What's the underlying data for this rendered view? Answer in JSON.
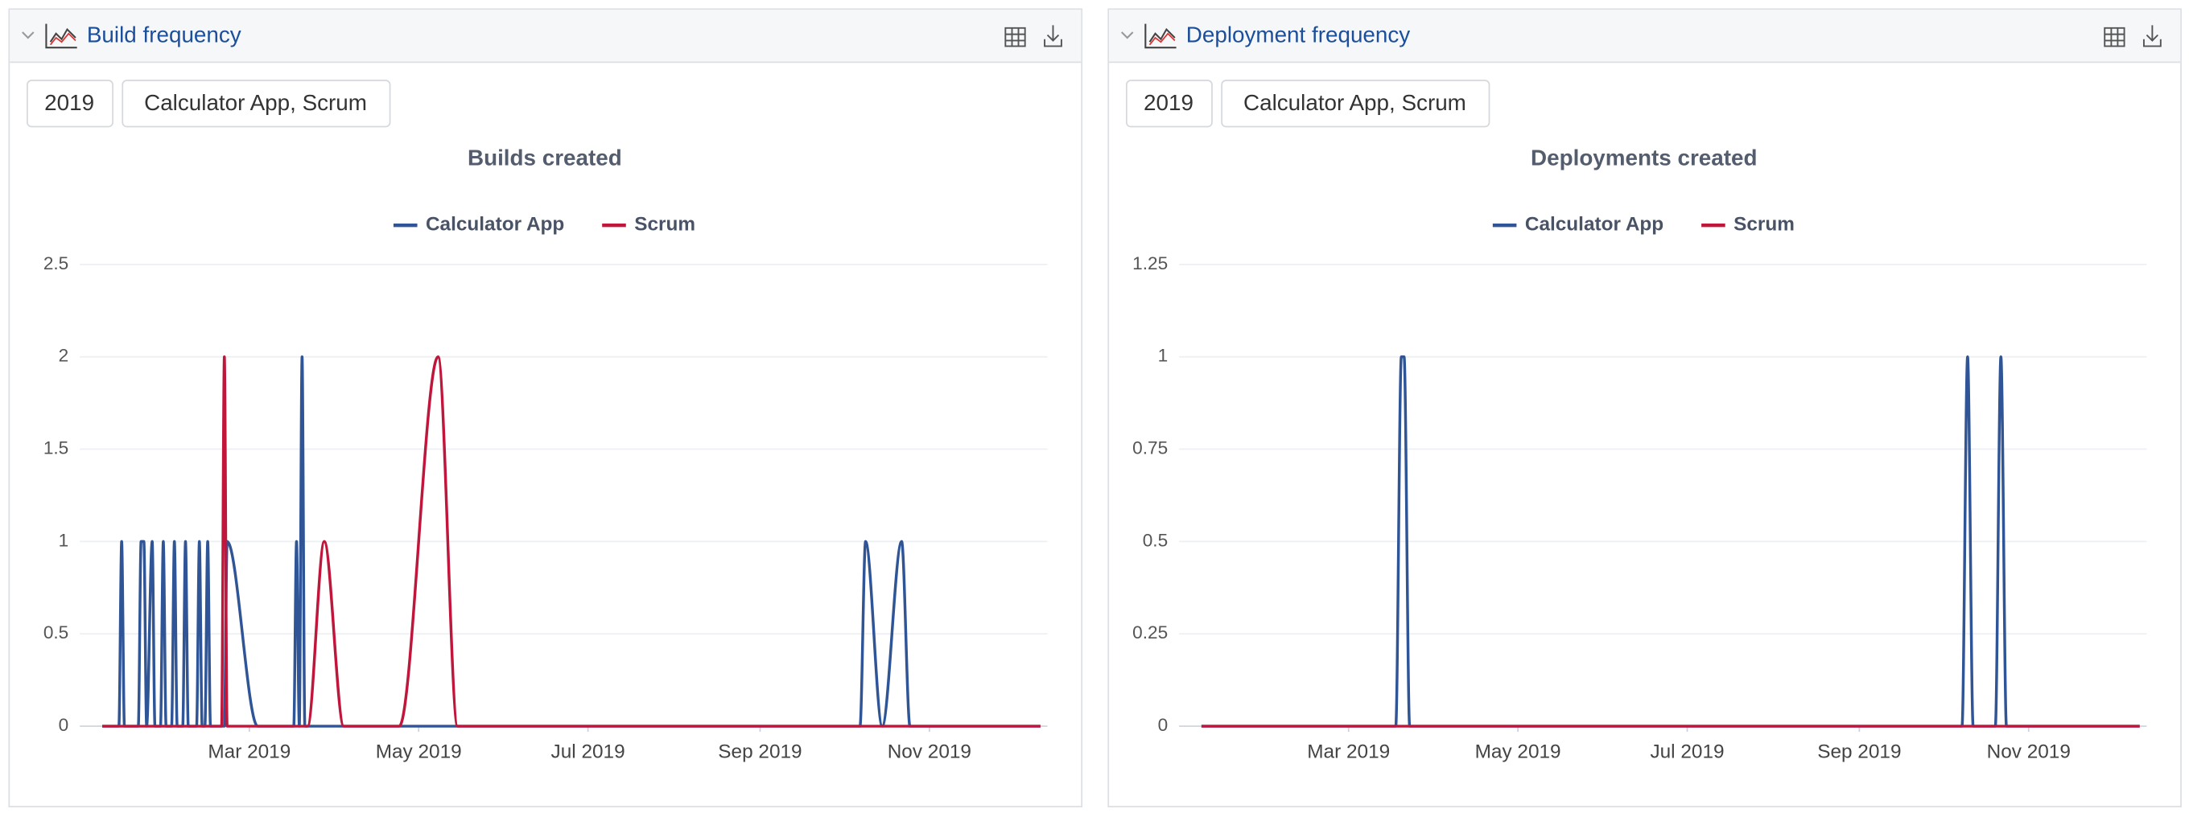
{
  "panels": [
    {
      "title": "Build frequency",
      "filters": [
        "2019",
        "Calculator App, Scrum"
      ]
    },
    {
      "title": "Deployment frequency",
      "filters": [
        "2019",
        "Calculator App, Scrum"
      ]
    }
  ],
  "chart_data": [
    {
      "type": "line",
      "title": "Builds created",
      "xlim": [
        6,
        344
      ],
      "xticks": [
        {
          "value": 59,
          "label": "Mar 2019"
        },
        {
          "value": 120,
          "label": "May 2019"
        },
        {
          "value": 181,
          "label": "Jul 2019"
        },
        {
          "value": 243,
          "label": "Sep 2019"
        },
        {
          "value": 304,
          "label": "Nov 2019"
        }
      ],
      "ylim": [
        0,
        2.5
      ],
      "yticks": [
        0,
        0.5,
        1,
        1.5,
        2,
        2.5
      ],
      "grid": true,
      "legend": "top",
      "series": [
        {
          "name": "Calculator App",
          "color": "#2f5597",
          "x": [
            6,
            12,
            13,
            14,
            19,
            20,
            21,
            22,
            24,
            25,
            27,
            28,
            29,
            31,
            32,
            33,
            35,
            36,
            37,
            40,
            41,
            42,
            43,
            44,
            45,
            50,
            51,
            62,
            75,
            76,
            77,
            78,
            79,
            279,
            281,
            287,
            294,
            297,
            344
          ],
          "values": [
            0,
            0,
            1,
            0,
            0,
            1,
            1,
            0,
            1,
            0,
            0,
            1,
            0,
            0,
            1,
            0,
            0,
            1,
            0,
            0,
            1,
            0,
            0,
            1,
            0,
            0,
            1,
            0,
            0,
            1,
            0,
            2,
            0,
            0,
            1,
            0,
            1,
            0,
            0
          ]
        },
        {
          "name": "Scrum",
          "color": "#c0163c",
          "x": [
            6,
            49,
            50,
            51,
            80,
            86,
            93,
            113,
            127,
            134,
            344
          ],
          "values": [
            0,
            0,
            2,
            0,
            0,
            1,
            0,
            0,
            2,
            0,
            0
          ]
        }
      ]
    },
    {
      "type": "line",
      "title": "Deployments created",
      "xlim": [
        6,
        344
      ],
      "xticks": [
        {
          "value": 59,
          "label": "Mar 2019"
        },
        {
          "value": 120,
          "label": "May 2019"
        },
        {
          "value": 181,
          "label": "Jul 2019"
        },
        {
          "value": 243,
          "label": "Sep 2019"
        },
        {
          "value": 304,
          "label": "Nov 2019"
        }
      ],
      "ylim": [
        0,
        1.25
      ],
      "yticks": [
        0,
        0.25,
        0.5,
        0.75,
        1,
        1.25
      ],
      "grid": true,
      "legend": "top",
      "series": [
        {
          "name": "Calculator App",
          "color": "#2f5597",
          "x": [
            6,
            76,
            78,
            79,
            81,
            280,
            282,
            284,
            292,
            294,
            296,
            344
          ],
          "values": [
            0,
            0,
            1,
            1,
            0,
            0,
            1,
            0,
            0,
            1,
            0,
            0
          ]
        },
        {
          "name": "Scrum",
          "color": "#c0163c",
          "x": [
            6,
            344
          ],
          "values": [
            0,
            0
          ]
        }
      ]
    }
  ]
}
